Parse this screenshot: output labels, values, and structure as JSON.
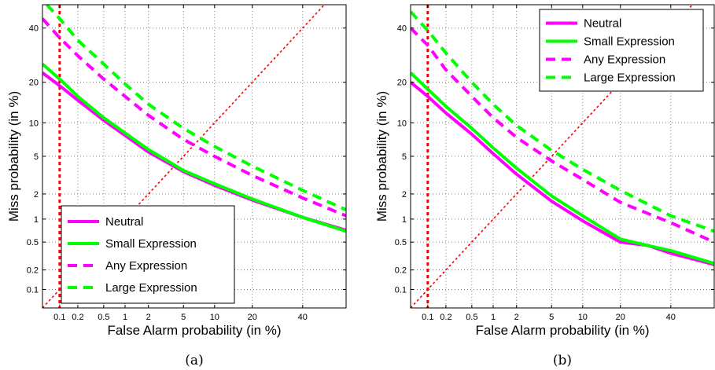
{
  "colors": {
    "magenta": "#ff00ff",
    "green": "#00ff00",
    "red": "#ff0000"
  },
  "chart_data": [
    {
      "type": "line",
      "caption": "(a)",
      "xlabel": "False Alarm probability (in %)",
      "ylabel": "Miss probability (in %)",
      "x_scale": "probit",
      "y_scale": "probit",
      "xlim": [
        0.05,
        60
      ],
      "ylim": [
        0.05,
        50
      ],
      "x_ticks": [
        "0.1",
        "0.2",
        "0.5",
        "1",
        "2",
        "5",
        "10",
        "20",
        "40"
      ],
      "x_tick_values": [
        0.1,
        0.2,
        0.5,
        1,
        2,
        5,
        10,
        20,
        40
      ],
      "y_ticks": [
        "0.1",
        "0.2",
        "0.5",
        "1",
        "2",
        "5",
        "10",
        "20",
        "40"
      ],
      "y_tick_values": [
        0.1,
        0.2,
        0.5,
        1,
        2,
        5,
        10,
        20,
        40
      ],
      "grid": true,
      "legend_position": "bottom-left",
      "vertical_line_x": 0.1,
      "series": [
        {
          "name": "Neutral",
          "color": "magenta",
          "style": "solid",
          "x": [
            0.05,
            0.1,
            0.2,
            0.5,
            1,
            2,
            5,
            10,
            20,
            40,
            60
          ],
          "y": [
            23,
            19,
            15,
            10.5,
            7.8,
            5.5,
            3.5,
            2.5,
            1.7,
            1.05,
            0.72
          ]
        },
        {
          "name": "Small Expression",
          "color": "green",
          "style": "solid",
          "x": [
            0.05,
            0.1,
            0.2,
            0.5,
            1,
            2,
            5,
            10,
            20,
            40,
            60
          ],
          "y": [
            26,
            21,
            16,
            11,
            8.2,
            5.8,
            3.6,
            2.6,
            1.75,
            1.05,
            0.7
          ]
        },
        {
          "name": "Any Expression",
          "color": "magenta",
          "style": "dashed",
          "x": [
            0.05,
            0.1,
            0.2,
            0.5,
            1,
            2,
            5,
            10,
            20,
            40,
            60
          ],
          "y": [
            44,
            36,
            29,
            21,
            16,
            11.5,
            7.2,
            5,
            3.2,
            1.8,
            1.1
          ]
        },
        {
          "name": "Large Expression",
          "color": "green",
          "style": "dashed",
          "x": [
            0.06,
            0.1,
            0.2,
            0.5,
            1,
            2,
            5,
            10,
            20,
            40,
            60
          ],
          "y": [
            50,
            44,
            35,
            26,
            19.5,
            14,
            9,
            6.2,
            4,
            2.2,
            1.3
          ]
        }
      ]
    },
    {
      "type": "line",
      "caption": "(b)",
      "xlabel": "False Alarm probability (in %)",
      "ylabel": "Miss probability (in %)",
      "x_scale": "probit",
      "y_scale": "probit",
      "xlim": [
        0.05,
        60
      ],
      "ylim": [
        0.05,
        50
      ],
      "x_ticks": [
        "0.1",
        "0.2",
        "0.5",
        "1",
        "2",
        "5",
        "10",
        "20",
        "40"
      ],
      "x_tick_values": [
        0.1,
        0.2,
        0.5,
        1,
        2,
        5,
        10,
        20,
        40
      ],
      "y_ticks": [
        "0.1",
        "0.2",
        "0.5",
        "1",
        "2",
        "5",
        "10",
        "20",
        "40"
      ],
      "y_tick_values": [
        0.1,
        0.2,
        0.5,
        1,
        2,
        5,
        10,
        20,
        40
      ],
      "grid": true,
      "legend_position": "top-right",
      "vertical_line_x": 0.1,
      "series": [
        {
          "name": "Neutral",
          "color": "magenta",
          "style": "solid",
          "x": [
            0.05,
            0.1,
            0.2,
            0.5,
            1,
            2,
            5,
            10,
            20,
            30,
            40,
            60
          ],
          "y": [
            20,
            16,
            12,
            8,
            5.3,
            3.3,
            1.65,
            0.95,
            0.5,
            0.45,
            0.35,
            0.24
          ]
        },
        {
          "name": "Small Expression",
          "color": "green",
          "style": "solid",
          "x": [
            0.05,
            0.1,
            0.2,
            0.5,
            1,
            2,
            5,
            10,
            20,
            30,
            40,
            60
          ],
          "y": [
            23,
            18,
            13.5,
            9,
            6,
            3.8,
            1.9,
            1.1,
            0.55,
            0.45,
            0.38,
            0.25
          ]
        },
        {
          "name": "Any Expression",
          "color": "magenta",
          "style": "dashed",
          "x": [
            0.05,
            0.1,
            0.2,
            0.5,
            1,
            2,
            5,
            10,
            20,
            40,
            60
          ],
          "y": [
            40,
            33,
            24,
            16,
            11,
            7.5,
            4.5,
            2.9,
            1.6,
            0.9,
            0.5
          ]
        },
        {
          "name": "Large Expression",
          "color": "green",
          "style": "dashed",
          "x": [
            0.05,
            0.1,
            0.2,
            0.5,
            1,
            2,
            5,
            10,
            20,
            40,
            60
          ],
          "y": [
            47,
            39,
            30,
            20,
            14,
            9.5,
            5.7,
            3.7,
            2.2,
            1.1,
            0.7
          ]
        }
      ]
    }
  ]
}
